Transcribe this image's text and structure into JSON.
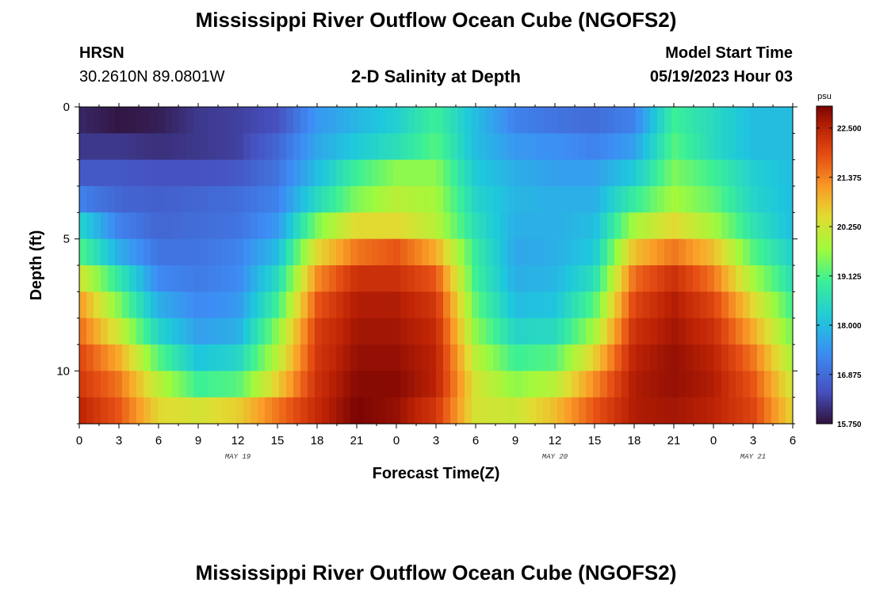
{
  "header": {
    "title": "Mississippi River Outflow Ocean Cube (NGOFS2)",
    "station": "HRSN",
    "coordinates": "30.2610N  89.0801W",
    "subtitle": "2-D Salinity at Depth",
    "model_start_label": "Model Start Time",
    "model_start_value": "05/19/2023 Hour 03"
  },
  "footer": {
    "title": "Mississippi River Outflow Ocean Cube (NGOFS2)"
  },
  "chart_data": {
    "type": "heatmap",
    "xlabel": "Forecast Time(Z)",
    "ylabel": "Depth (ft)",
    "x_range_hours": [
      0,
      54
    ],
    "x_tick_labels": [
      "0",
      "3",
      "6",
      "9",
      "12",
      "15",
      "18",
      "21",
      "0",
      "3",
      "6",
      "9",
      "12",
      "15",
      "18",
      "21",
      "0",
      "3",
      "6"
    ],
    "date_labels": [
      {
        "text": "MAY 19",
        "hour": 12
      },
      {
        "text": "MAY 20",
        "hour": 36
      },
      {
        "text": "MAY 21",
        "hour": 51
      }
    ],
    "ylim": [
      0,
      12
    ],
    "y_ticks": [
      0,
      5,
      10
    ],
    "colorbar": {
      "unit": "psu",
      "min": 15.75,
      "max": 23.0,
      "tick_labels": [
        "15.750",
        "16.875",
        "18.000",
        "19.125",
        "20.250",
        "21.375",
        "22.500"
      ],
      "tick_values": [
        15.75,
        16.875,
        18.0,
        19.125,
        20.25,
        21.375,
        22.5
      ]
    },
    "depth_levels_ft": [
      0.5,
      1.5,
      2.5,
      3.5,
      4.5,
      5.5,
      6.5,
      7.5,
      8.5,
      9.5,
      10.5,
      11.5
    ],
    "time_hours": [
      0,
      3,
      6,
      9,
      12,
      15,
      18,
      21,
      24,
      27,
      30,
      33,
      36,
      39,
      42,
      45,
      48,
      51,
      54
    ],
    "salinity_psu": [
      [
        16.0,
        15.8,
        15.9,
        16.2,
        16.3,
        16.5,
        17.5,
        17.9,
        18.3,
        19.0,
        18.0,
        17.2,
        17.0,
        16.9,
        17.2,
        19.0,
        18.5,
        18.0,
        18.0
      ],
      [
        16.2,
        16.2,
        16.1,
        16.2,
        16.3,
        16.8,
        17.7,
        18.2,
        18.6,
        19.2,
        18.0,
        17.5,
        17.4,
        17.2,
        17.6,
        19.2,
        18.5,
        18.0,
        18.0
      ],
      [
        16.6,
        16.6,
        16.5,
        16.5,
        16.6,
        17.0,
        18.0,
        19.0,
        19.6,
        19.6,
        18.2,
        17.8,
        17.6,
        17.6,
        18.2,
        19.5,
        19.0,
        18.3,
        18.0
      ],
      [
        17.2,
        16.8,
        16.7,
        16.8,
        16.9,
        17.2,
        18.5,
        19.5,
        20.0,
        19.8,
        18.4,
        17.9,
        17.8,
        17.8,
        18.9,
        19.8,
        19.3,
        18.4,
        18.0
      ],
      [
        18.4,
        17.2,
        16.8,
        16.9,
        17.0,
        17.5,
        19.5,
        20.5,
        20.5,
        20.0,
        18.6,
        17.8,
        17.8,
        18.0,
        19.8,
        20.5,
        19.8,
        18.7,
        18.0
      ],
      [
        19.2,
        17.8,
        17.0,
        17.0,
        17.2,
        18.0,
        20.5,
        21.5,
        21.8,
        21.0,
        18.9,
        17.7,
        17.8,
        18.2,
        20.8,
        21.5,
        20.8,
        19.2,
        18.3
      ],
      [
        20.3,
        18.8,
        17.3,
        17.1,
        17.3,
        18.5,
        21.3,
        22.3,
        22.3,
        21.8,
        19.0,
        17.8,
        17.9,
        18.6,
        21.6,
        22.3,
        21.5,
        19.8,
        18.6
      ],
      [
        21.2,
        19.5,
        17.8,
        17.3,
        17.5,
        19.0,
        21.8,
        22.6,
        22.6,
        22.2,
        19.3,
        18.0,
        18.1,
        19.2,
        22.0,
        22.6,
        22.0,
        20.5,
        19.0
      ],
      [
        21.6,
        20.2,
        18.4,
        17.6,
        17.8,
        19.6,
        22.1,
        22.7,
        22.7,
        22.4,
        19.6,
        18.4,
        18.5,
        19.8,
        22.3,
        22.7,
        22.3,
        21.0,
        19.4
      ],
      [
        22.0,
        21.0,
        19.2,
        18.1,
        18.4,
        20.0,
        22.2,
        22.8,
        22.8,
        22.5,
        20.0,
        19.0,
        19.2,
        20.6,
        22.5,
        22.8,
        22.5,
        21.5,
        19.8
      ],
      [
        22.2,
        21.5,
        20.0,
        19.0,
        19.2,
        20.6,
        22.3,
        22.9,
        22.9,
        22.5,
        20.3,
        19.6,
        20.0,
        21.3,
        22.6,
        22.8,
        22.6,
        21.8,
        20.2
      ],
      [
        22.5,
        21.8,
        20.5,
        20.3,
        20.6,
        21.5,
        22.4,
        23.0,
        22.8,
        22.2,
        20.3,
        20.2,
        20.8,
        21.8,
        22.6,
        22.7,
        22.5,
        22.0,
        20.5
      ]
    ]
  }
}
